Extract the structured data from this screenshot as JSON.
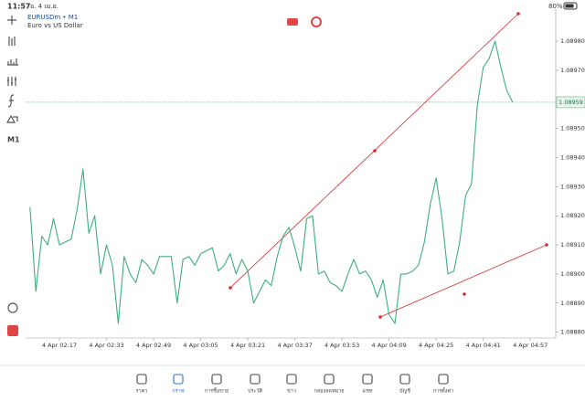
{
  "status_bar": {
    "time": "11:57",
    "date": "อ. 4 เม.ย.",
    "battery": "80%"
  },
  "toolbar": {
    "timeframe": "M1"
  },
  "chart_data": {
    "type": "line",
    "title": "EURUSDm • M1",
    "subtitle": "Euro vs US Dollar",
    "categories": [
      null,
      null,
      null,
      null,
      null,
      "4 Apr 02:17",
      null,
      null,
      null,
      null,
      null,
      null,
      null,
      "4 Apr 02:33",
      null,
      null,
      null,
      null,
      null,
      null,
      null,
      "4 Apr 02:49",
      null,
      null,
      null,
      null,
      null,
      null,
      null,
      "4 Apr 03:05",
      null,
      null,
      null,
      null,
      null,
      null,
      null,
      "4 Apr 03:21",
      null,
      null,
      null,
      null,
      null,
      null,
      null,
      "4 Apr 03:37",
      null,
      null,
      null,
      null,
      null,
      null,
      null,
      "4 Apr 03:53",
      null,
      null,
      null,
      null,
      null,
      null,
      null,
      "4 Apr 04:09",
      null,
      null,
      null,
      null,
      null,
      null,
      null,
      "4 Apr 04:25",
      null,
      null,
      null,
      null,
      null,
      null,
      null,
      "4 Apr 04:41",
      null,
      null,
      null,
      null,
      null,
      null,
      null,
      "4 Apr 04:57"
    ],
    "values": [
      1.08923,
      1.08894,
      1.08913,
      1.0891,
      1.08919,
      1.0891,
      1.08911,
      1.08912,
      1.08922,
      1.08936,
      1.08914,
      1.0892,
      1.089,
      1.0891,
      1.08903,
      1.08883,
      1.08906,
      1.089,
      1.08897,
      1.08905,
      1.08903,
      1.089,
      1.08906,
      1.08906,
      1.08906,
      1.0889,
      1.08905,
      1.08906,
      1.08903,
      1.08907,
      1.08908,
      1.08909,
      1.08901,
      1.08903,
      1.08907,
      1.089,
      1.08905,
      1.08901,
      1.0889,
      1.08894,
      1.08898,
      1.08896,
      1.08906,
      1.08913,
      1.08916,
      1.08909,
      1.08901,
      1.08919,
      1.0892,
      1.089,
      1.08901,
      1.08897,
      1.08896,
      1.08894,
      1.089,
      1.08905,
      1.089,
      1.08901,
      1.08898,
      1.08892,
      1.08898,
      1.08886,
      1.08883,
      1.089,
      1.089,
      1.08901,
      1.08903,
      1.08911,
      1.08924,
      1.08933,
      1.08919,
      1.089,
      1.08901,
      1.08911,
      1.08927,
      1.08931,
      1.08958,
      1.08971,
      1.08974,
      1.0898,
      1.08971,
      1.08963,
      1.08959,
      null,
      null,
      null
    ],
    "color": "#3daf7e",
    "ylim": [
      1.08878,
      1.08991
    ],
    "yticks": [
      {
        "value": 1.0898,
        "label": "1.08980"
      },
      {
        "value": 1.0897,
        "label": "1.08970"
      },
      {
        "value": 1.0895,
        "label": "1.08950"
      },
      {
        "value": 1.0894,
        "label": "1.08940"
      },
      {
        "value": 1.0893,
        "label": "1.08930"
      },
      {
        "value": 1.0892,
        "label": "1.08920"
      },
      {
        "value": 1.0891,
        "label": "1.08910"
      },
      {
        "value": 1.089,
        "label": "1.08900"
      },
      {
        "value": 1.0889,
        "label": "1.08890"
      },
      {
        "value": 1.0888,
        "label": "1.08880"
      }
    ],
    "last_price": 1.08959
  },
  "tab_bar": [
    "ราคา",
    "กราฟ",
    "การซื้อขาย",
    "ประวัติ",
    "ข่าว",
    "กล่องจดหมาย",
    "แชท",
    "บัญชี",
    "การตั้งค่า"
  ]
}
